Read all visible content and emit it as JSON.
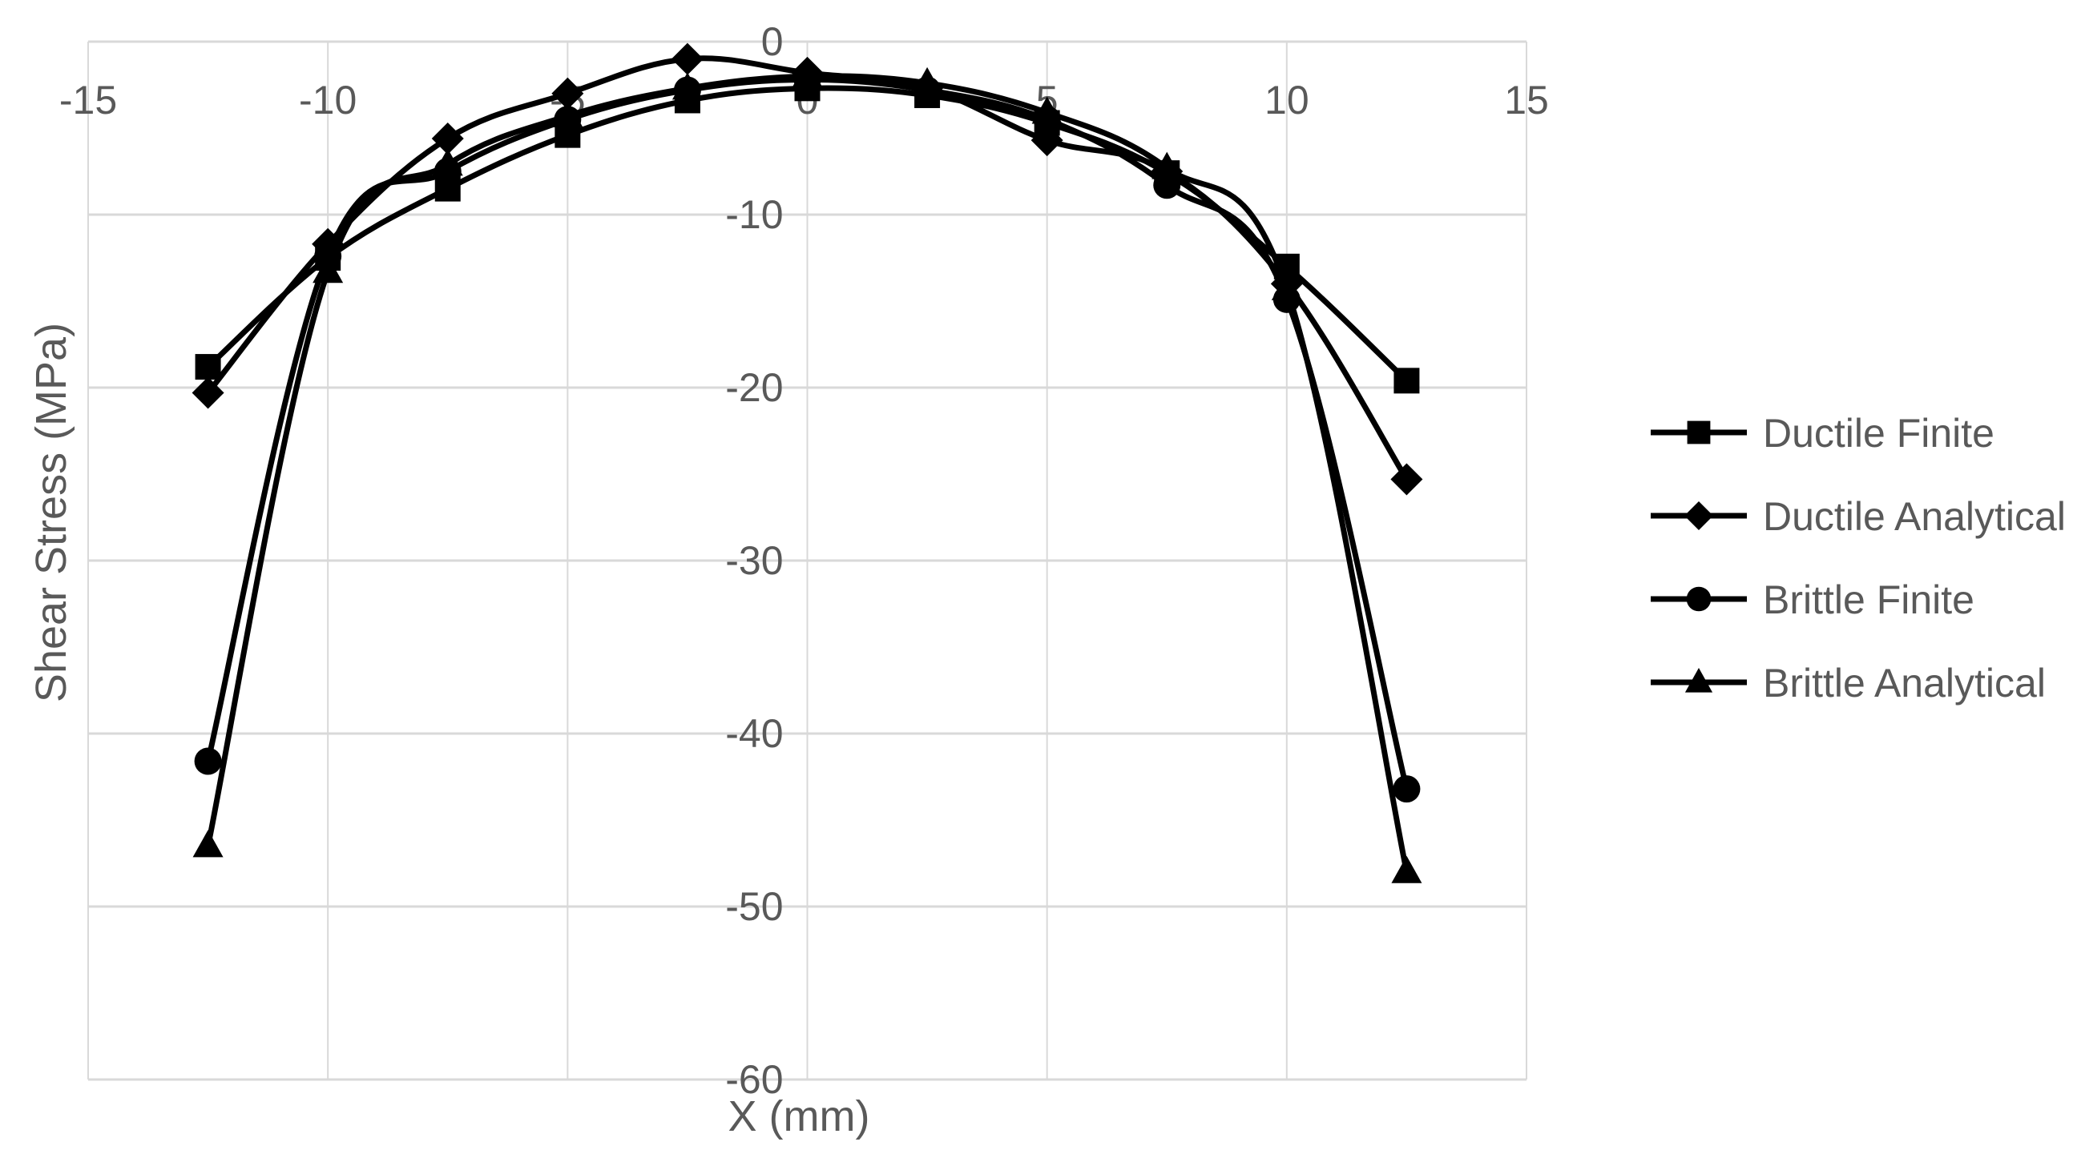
{
  "chart_data": {
    "type": "scatter",
    "title": "",
    "xlabel": "X (mm)",
    "ylabel": "Shear Stress (MPa)",
    "xlim": [
      -15,
      15
    ],
    "ylim": [
      -60,
      0
    ],
    "xticks": [
      -15,
      -10,
      -5,
      0,
      5,
      10,
      15
    ],
    "yticks": [
      0,
      -10,
      -20,
      -30,
      -40,
      -50,
      -60
    ],
    "xtick_labels": [
      "-15",
      "-10",
      "-5",
      "0",
      "5",
      "10",
      "15"
    ],
    "ytick_labels": [
      "0",
      "-10",
      "-20",
      "-30",
      "-40",
      "-50",
      "-60"
    ],
    "grid": true,
    "x_axis_position": "top",
    "legend_position": "right",
    "colors": {
      "series": "#000000",
      "grid": "#d9d9d9",
      "text": "#595959"
    },
    "series": [
      {
        "name": "Ductile Finite",
        "marker": "square",
        "x": [
          -12.5,
          -10,
          -7.5,
          -5,
          -2.5,
          0,
          2.5,
          5,
          7.5,
          10,
          12.5
        ],
        "y": [
          -18.8,
          -12.5,
          -8.5,
          -5.4,
          -3.4,
          -2.7,
          -3.1,
          -4.7,
          -7.6,
          -13.0,
          -19.6
        ]
      },
      {
        "name": "Ductile Analytical",
        "marker": "diamond",
        "x": [
          -12.5,
          -10,
          -7.5,
          -5,
          -2.5,
          0,
          2.5,
          5,
          7.5,
          10,
          12.5
        ],
        "y": [
          -20.3,
          -11.7,
          -5.6,
          -3.0,
          -1.0,
          -1.8,
          -2.7,
          -5.7,
          -7.5,
          -14.0,
          -25.3
        ]
      },
      {
        "name": "Brittle Finite",
        "marker": "circle",
        "x": [
          -12.5,
          -10,
          -7.5,
          -5,
          -2.5,
          0,
          2.5,
          5,
          7.5,
          10,
          12.5
        ],
        "y": [
          -41.6,
          -12.4,
          -7.5,
          -4.5,
          -2.8,
          -2.2,
          -2.8,
          -4.5,
          -8.3,
          -14.9,
          -43.2
        ]
      },
      {
        "name": "Brittle Analytical",
        "marker": "triangle",
        "x": [
          -12.5,
          -10,
          -7.5,
          -5,
          -2.5,
          0,
          2.5,
          5,
          7.5,
          10,
          12.5
        ],
        "y": [
          -46.5,
          -13.3,
          -7.1,
          -4.3,
          -2.7,
          -2.0,
          -2.4,
          -4.1,
          -7.3,
          -14.3,
          -48.0
        ]
      }
    ]
  }
}
